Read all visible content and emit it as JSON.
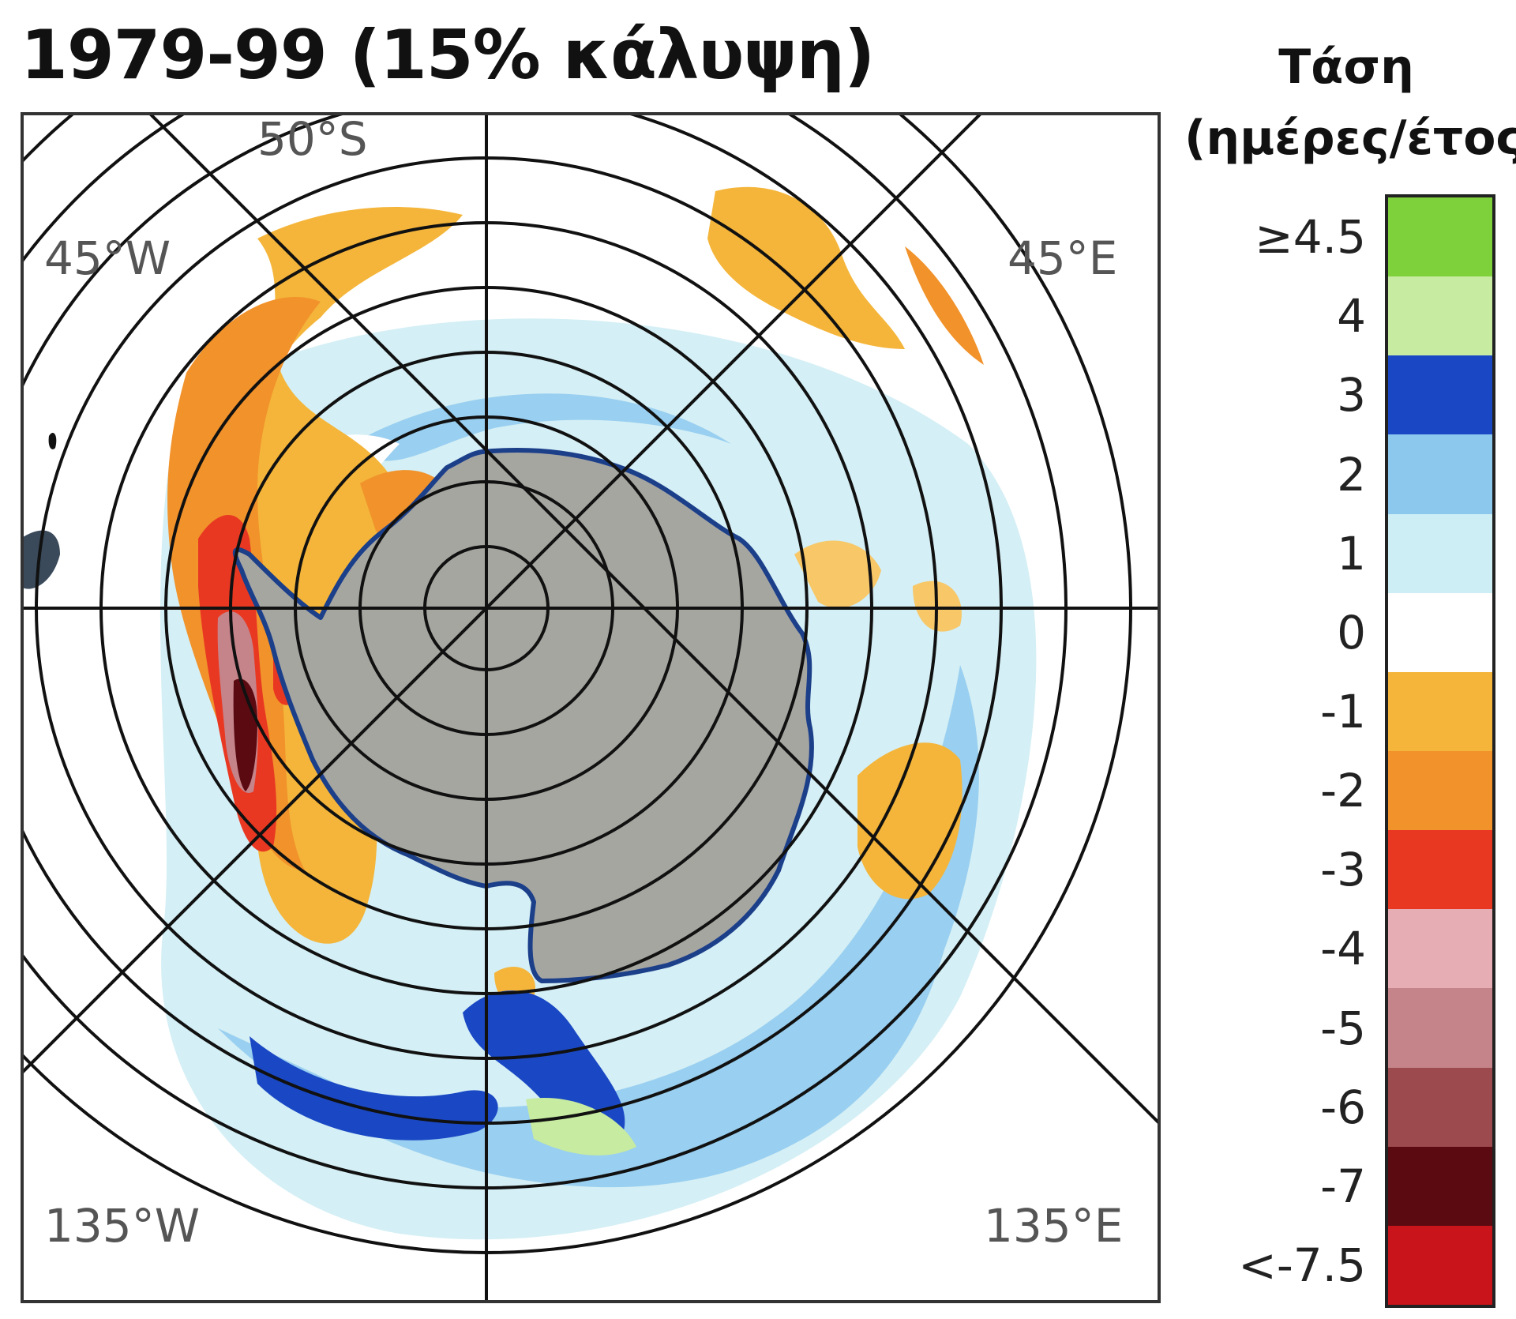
{
  "title": "1979-99 (15% κάλυψη)",
  "legend": {
    "title_line1": "Τάση",
    "title_line2": "(ημέρες/έτος)",
    "unit": "ημέρες/έτος",
    "bins": [
      {
        "label": "≥4.5",
        "color": "#7fd13b"
      },
      {
        "label": "4",
        "color": "#c7eba0"
      },
      {
        "label": "3",
        "color": "#1a48c4"
      },
      {
        "label": "2",
        "color": "#8cc8ee"
      },
      {
        "label": "1",
        "color": "#cdeef4"
      },
      {
        "label": "0",
        "color": "#ffffff"
      },
      {
        "label": "-1",
        "color": "#f4b53a"
      },
      {
        "label": "-2",
        "color": "#f1922b"
      },
      {
        "label": "-3",
        "color": "#e93822"
      },
      {
        "label": "-4",
        "color": "#e6aeb4"
      },
      {
        "label": "-5",
        "color": "#c5838a"
      },
      {
        "label": "-6",
        "color": "#9c4a4e"
      },
      {
        "label": "-7",
        "color": "#5a0a10"
      },
      {
        "label": "<-7.5",
        "color": "#c8141a"
      }
    ]
  },
  "map": {
    "labels": {
      "lat_50s": "50°S",
      "nw": "45°W",
      "ne": "45°E",
      "sw": "135°W",
      "se": "135°E"
    },
    "colors": {
      "land": "#a6a6a1",
      "coast": "#1c3f8a",
      "grid": "#111111"
    }
  }
}
